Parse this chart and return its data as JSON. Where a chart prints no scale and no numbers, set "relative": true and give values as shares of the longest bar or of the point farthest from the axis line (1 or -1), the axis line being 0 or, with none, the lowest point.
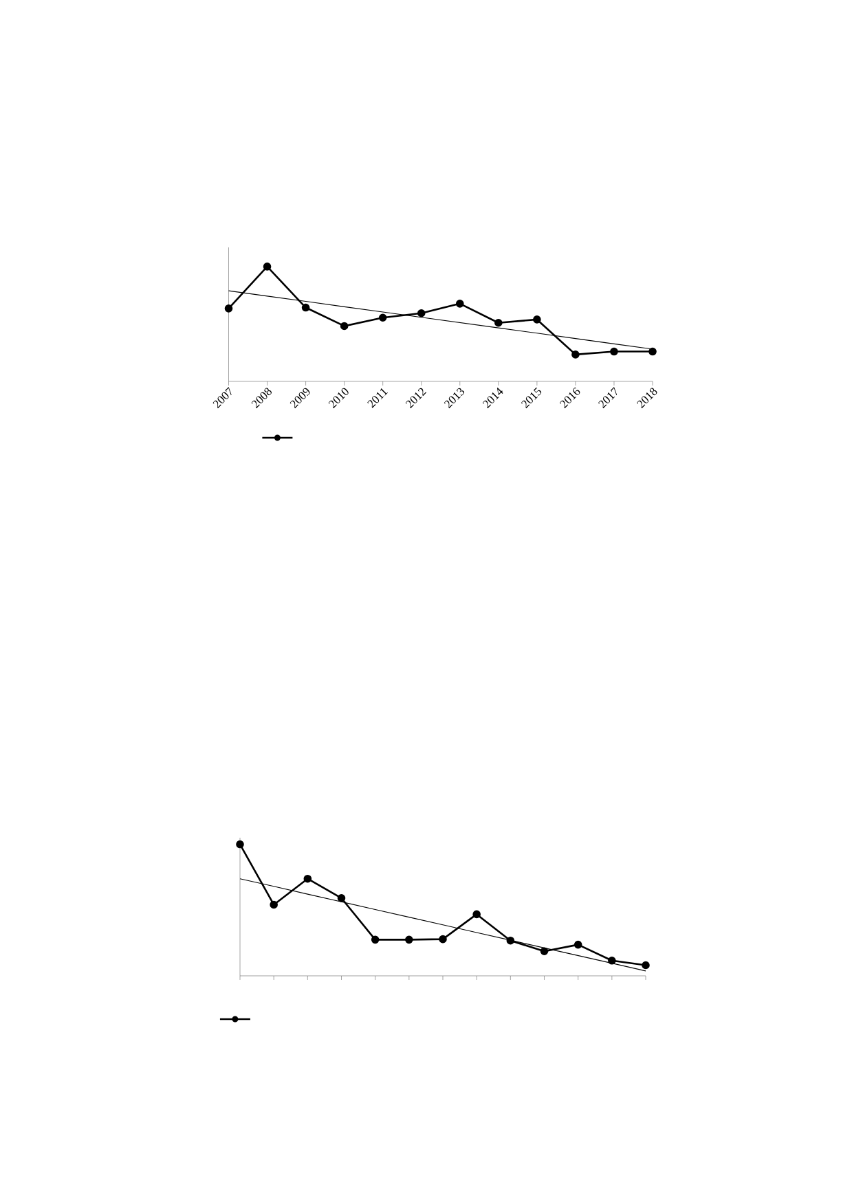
{
  "chart_data": [
    {
      "type": "line",
      "relative": true,
      "categories": [
        "2007",
        "2008",
        "2009",
        "2010",
        "2011",
        "2012",
        "2013",
        "2014",
        "2015",
        "2016",
        "2017",
        "2018"
      ],
      "marker": "circle",
      "line_style": "solid",
      "tick_labels": "x",
      "grid": false,
      "series": [
        {
          "color": "#000000",
          "values": [
            0.635,
            1,
            0.643,
            0.482,
            0.555,
            0.594,
            0.677,
            0.51,
            0.539,
            0.234,
            0.26,
            0.26
          ]
        },
        {
          "type": "line",
          "marker": "none",
          "color": "#000000",
          "values": [
            0.789,
            0.743,
            0.697,
            0.65,
            0.604,
            0.558,
            0.512,
            0.466,
            0.42,
            0.373,
            0.327,
            0.281
          ]
        }
      ]
    },
    {
      "type": "line",
      "relative": true,
      "categories": [
        null,
        null,
        null,
        null,
        null,
        null,
        null,
        null,
        null,
        null,
        null,
        null,
        null
      ],
      "marker": "circle",
      "line_style": "solid",
      "tick_labels": false,
      "grid": false,
      "series": [
        {
          "color": "#000000",
          "values": [
            1,
            0.541,
            0.738,
            0.591,
            0.275,
            0.275,
            0.279,
            0.468,
            0.268,
            0.187,
            0.237,
            0.116,
            0.081
          ]
        },
        {
          "type": "line",
          "marker": "none",
          "color": "#000000",
          "values": [
            0.738,
            0.68,
            0.621,
            0.563,
            0.504,
            0.446,
            0.388,
            0.329,
            0.271,
            0.212,
            0.154,
            0.096,
            0.037
          ]
        }
      ]
    }
  ]
}
